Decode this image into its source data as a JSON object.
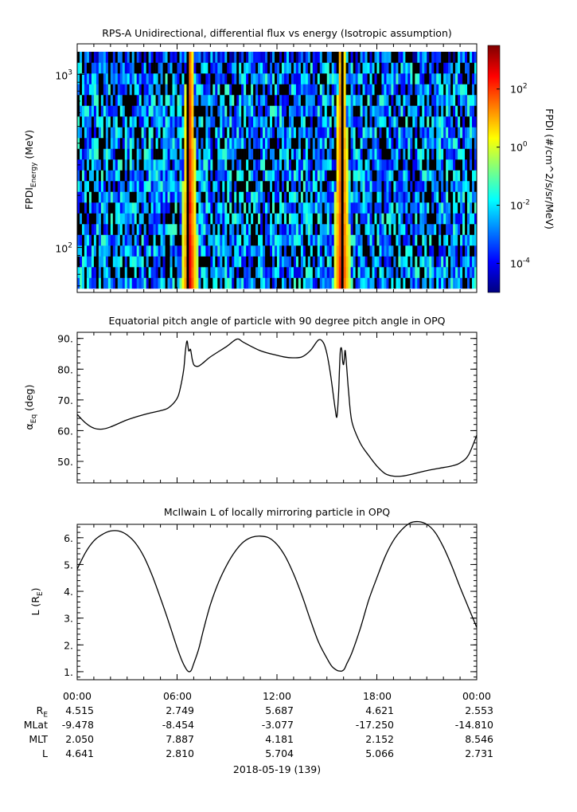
{
  "chart_data": [
    {
      "type": "heatmap",
      "title": "RPS-A Unidirectional, differential flux vs energy (Isotropic assumption)",
      "ylabel_main": "FPDI",
      "ylabel_sub": "Energy",
      "ylabel_unit": "(MeV)",
      "yscale": "log",
      "ylim": [
        55,
        1500
      ],
      "data_yrange": [
        58,
        1350
      ],
      "yticks": [
        {
          "base": "10",
          "exp": "2",
          "value": 100
        },
        {
          "base": "10",
          "exp": "3",
          "value": 1000
        }
      ],
      "x_hours": [
        0,
        24
      ],
      "band_centers_hours": [
        6.75,
        15.9
      ],
      "null_line_hours": [
        6.6,
        15.92
      ],
      "colorbar": {
        "label": "FPDI (#/cm^2/s/sr/MeV)",
        "scale": "log",
        "range_log10": [
          -5,
          3.5
        ],
        "ticks": [
          {
            "base": "10",
            "exp": "2",
            "value": 100
          },
          {
            "base": "10",
            "exp": "0",
            "value": 1
          },
          {
            "base": "10",
            "exp": "-2",
            "value": 0.01
          },
          {
            "base": "10",
            "exp": "-4",
            "value": 0.0001
          }
        ],
        "colors": [
          "#00007f",
          "#0000ff",
          "#007fff",
          "#00ffff",
          "#7fff7f",
          "#ffff00",
          "#ff7f00",
          "#ff0000",
          "#7f0000"
        ]
      }
    },
    {
      "type": "line",
      "title": "Equatorial pitch angle of particle with 90 degree pitch angle in OPQ",
      "ylabel_main": "α",
      "ylabel_sub": "Eq",
      "ylabel_unit": "(deg)",
      "ylim": [
        43,
        92
      ],
      "yticks": [
        "90.",
        "80.",
        "70.",
        "60.",
        "50."
      ],
      "ytick_values": [
        90,
        80,
        70,
        60,
        50
      ],
      "x": [
        0,
        0.5,
        1,
        1.5,
        2,
        3,
        4,
        5,
        5.5,
        6,
        6.2,
        6.4,
        6.5,
        6.6,
        6.7,
        6.8,
        6.85,
        6.9,
        6.95,
        7.0,
        7.1,
        7.3,
        7.6,
        8,
        9,
        9.6,
        10,
        11,
        12,
        12.5,
        13,
        13.5,
        14,
        14.5,
        14.8,
        15,
        15.2,
        15.4,
        15.5,
        15.6,
        15.7,
        15.75,
        15.8,
        15.85,
        15.9,
        15.95,
        16.0,
        16.05,
        16.1,
        16.2,
        16.3,
        16.5,
        17,
        17.5,
        18,
        18.5,
        19,
        19.5,
        20,
        21,
        22,
        22.5,
        23,
        23.5,
        24
      ],
      "y": [
        65.3,
        62.5,
        60.8,
        60.5,
        61.2,
        63.5,
        65.2,
        66.5,
        67.5,
        70.5,
        74,
        80,
        86,
        89.2,
        86,
        86.5,
        85.2,
        83.5,
        82.3,
        81.5,
        81.0,
        81.0,
        82.2,
        84,
        87.5,
        89.8,
        88.7,
        86,
        84.5,
        83.9,
        83.7,
        84.0,
        86,
        89.5,
        88.5,
        85,
        79,
        71,
        67,
        64.5,
        72,
        79,
        85.5,
        87,
        86,
        82.5,
        81.5,
        83.5,
        86,
        80,
        73,
        63,
        56,
        52,
        48.5,
        46,
        45.2,
        45.2,
        45.7,
        47,
        48,
        48.5,
        49.5,
        52,
        58.5
      ]
    },
    {
      "type": "line",
      "title": "McIlwain L of locally mirroring particle in OPQ",
      "ylabel_main": "L (R",
      "ylabel_sub": "E",
      "ylabel_unit": ")",
      "ylim": [
        0.7,
        6.5
      ],
      "yticks": [
        "6.",
        "5.",
        "4.",
        "3.",
        "2.",
        "1."
      ],
      "ytick_values": [
        6,
        5,
        4,
        3,
        2,
        1
      ],
      "x": [
        0,
        0.5,
        1,
        1.5,
        2,
        2.5,
        3,
        3.5,
        4,
        4.5,
        5,
        5.5,
        6,
        6.3,
        6.5,
        6.65,
        6.75,
        6.85,
        7.0,
        7.3,
        7.6,
        8,
        8.5,
        9,
        9.5,
        10,
        10.5,
        11,
        11.5,
        12,
        12.5,
        13,
        13.5,
        14,
        14.5,
        15,
        15.3,
        15.6,
        15.8,
        15.92,
        16.05,
        16.2,
        16.5,
        17,
        17.5,
        18,
        18.5,
        19,
        19.5,
        20,
        20.5,
        21,
        21.5,
        22,
        22.5,
        23,
        23.5,
        24
      ],
      "y": [
        4.83,
        5.45,
        5.88,
        6.12,
        6.25,
        6.25,
        6.1,
        5.8,
        5.3,
        4.6,
        3.75,
        2.85,
        1.9,
        1.4,
        1.15,
        1.02,
        1.0,
        1.05,
        1.3,
        1.85,
        2.6,
        3.5,
        4.35,
        5.0,
        5.5,
        5.85,
        6.02,
        6.06,
        6.0,
        5.75,
        5.3,
        4.65,
        3.85,
        2.95,
        2.1,
        1.5,
        1.2,
        1.05,
        1.02,
        1.03,
        1.1,
        1.3,
        1.7,
        2.6,
        3.65,
        4.5,
        5.3,
        5.9,
        6.3,
        6.55,
        6.6,
        6.5,
        6.2,
        5.65,
        4.95,
        4.15,
        3.4,
        2.65
      ]
    }
  ],
  "time_axis": {
    "tick_labels": [
      "00:00",
      "06:00",
      "12:00",
      "18:00",
      "00:00"
    ],
    "date_label": "2018-05-19 (139)"
  },
  "ephemeris": [
    {
      "label": "R",
      "label_sub": "E",
      "values": [
        "4.515",
        "2.749",
        "5.687",
        "4.621",
        "2.553"
      ]
    },
    {
      "label": "MLat",
      "label_sub": "",
      "values": [
        "-9.478",
        "-8.454",
        "-3.077",
        "-17.250",
        "-14.810"
      ]
    },
    {
      "label": "MLT",
      "label_sub": "",
      "values": [
        "2.050",
        "7.887",
        "4.181",
        "2.152",
        "8.546"
      ]
    },
    {
      "label": "L",
      "label_sub": "",
      "values": [
        "4.641",
        "2.810",
        "5.704",
        "5.066",
        "2.731"
      ]
    }
  ]
}
